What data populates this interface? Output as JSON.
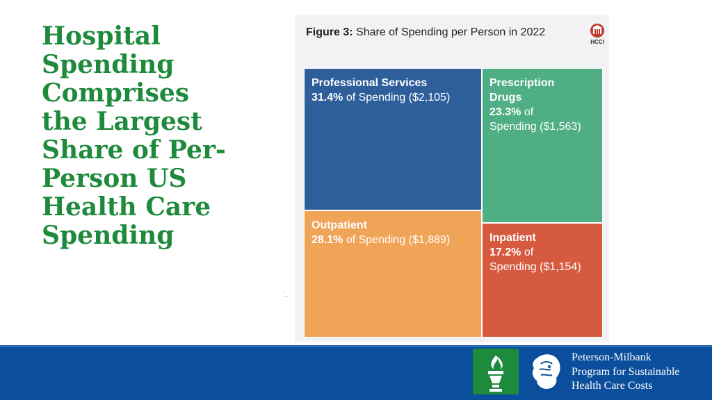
{
  "slide": {
    "title_lines": [
      "Hospital",
      "Spending",
      "Comprises",
      "the Largest",
      "Share of Per-",
      "Person US",
      "Health Care",
      "Spending"
    ]
  },
  "figure": {
    "label": "Figure 3:",
    "title": "Share of Spending per Person in 2022",
    "logo_text": "HCCI"
  },
  "chart_data": {
    "type": "treemap",
    "title": "Share of Spending per Person in 2022",
    "unit": "percent of spending (dollars per person)",
    "items": [
      {
        "name": "Professional Services",
        "share_pct": 31.4,
        "value_usd": 2105,
        "color": "#2e5f9b",
        "label_lines": [
          "Professional Services"
        ],
        "pct_text": "31.4%",
        "rest_lines": [
          " of Spending ($2,105)"
        ]
      },
      {
        "name": "Prescription Drugs",
        "share_pct": 23.3,
        "value_usd": 1563,
        "color": "#4fae84",
        "label_lines": [
          "Prescription",
          "Drugs"
        ],
        "pct_text": "23.3%",
        "rest_lines": [
          " of",
          "Spending ($1,563)"
        ]
      },
      {
        "name": "Outpatient",
        "share_pct": 28.1,
        "value_usd": 1889,
        "color": "#f0a458",
        "label_lines": [
          "Outpatient"
        ],
        "pct_text": "28.1%",
        "rest_lines": [
          " of Spending ($1,889)"
        ]
      },
      {
        "name": "Inpatient",
        "share_pct": 17.2,
        "value_usd": 1154,
        "color": "#d65a40",
        "label_lines": [
          "Inpatient"
        ],
        "pct_text": "17.2%",
        "rest_lines": [
          " of",
          "Spending ($1,154)"
        ]
      }
    ]
  },
  "footer": {
    "org_lines": [
      "Peterson-Milbank",
      "Program for Sustainable",
      "Health Care Costs"
    ],
    "colors": {
      "bar": "#0b4e9b",
      "torch_bg": "#1e8a3c"
    }
  }
}
